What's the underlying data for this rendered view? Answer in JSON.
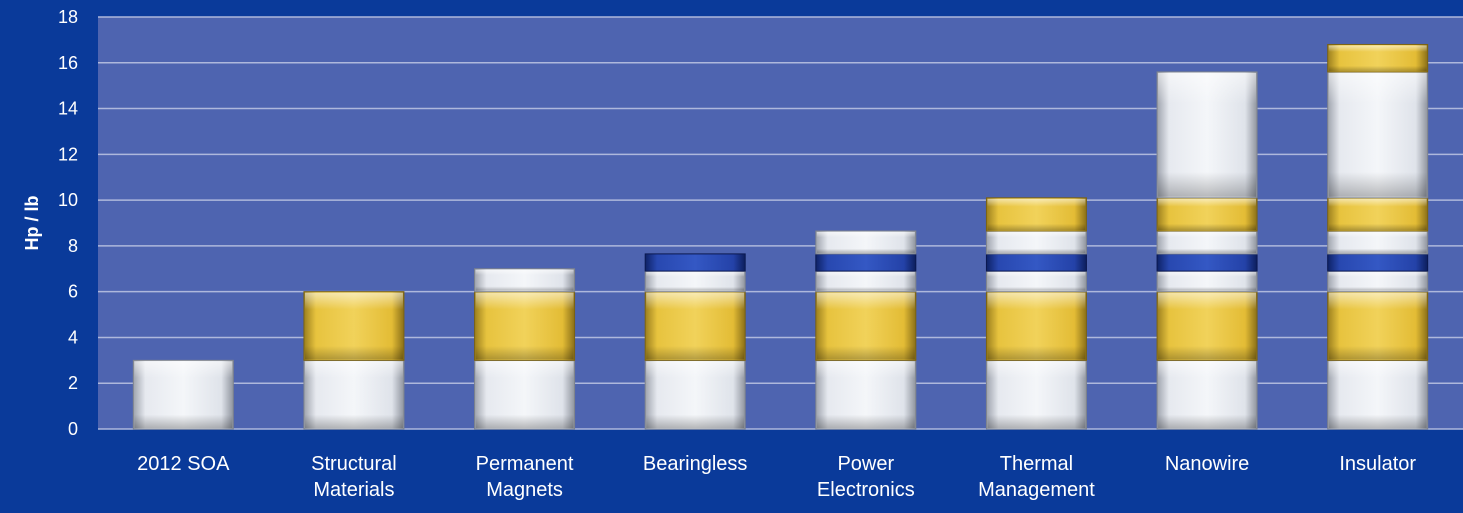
{
  "chart_data": {
    "type": "bar",
    "stacked": true,
    "title": "",
    "xlabel": "",
    "ylabel": "Hp / lb",
    "ylim": [
      0,
      18
    ],
    "yticks": [
      0,
      2,
      4,
      6,
      8,
      10,
      12,
      14,
      16,
      18
    ],
    "grid": true,
    "legend": "none",
    "categories": [
      [
        "2012 SOA"
      ],
      [
        "Structural",
        "Materials"
      ],
      [
        "Permanent",
        "Magnets"
      ],
      [
        "Bearingless"
      ],
      [
        "Power",
        "Electronics"
      ],
      [
        "Thermal",
        "Management"
      ],
      [
        "Nanowire"
      ],
      [
        "Insulator"
      ]
    ],
    "stacks": [
      [
        {
          "value": 3,
          "color": "silver"
        }
      ],
      [
        {
          "value": 3,
          "color": "silver"
        },
        {
          "value": 3,
          "color": "gold"
        }
      ],
      [
        {
          "value": 3,
          "color": "silver"
        },
        {
          "value": 3,
          "color": "gold"
        },
        {
          "value": 1,
          "color": "silver"
        }
      ],
      [
        {
          "value": 3,
          "color": "silver"
        },
        {
          "value": 3,
          "color": "gold"
        },
        {
          "value": 0.9,
          "color": "silver"
        },
        {
          "value": 0.75,
          "color": "blue"
        }
      ],
      [
        {
          "value": 3,
          "color": "silver"
        },
        {
          "value": 3,
          "color": "gold"
        },
        {
          "value": 0.9,
          "color": "silver"
        },
        {
          "value": 0.75,
          "color": "blue"
        },
        {
          "value": 1.0,
          "color": "silver"
        }
      ],
      [
        {
          "value": 3,
          "color": "silver"
        },
        {
          "value": 3,
          "color": "gold"
        },
        {
          "value": 0.9,
          "color": "silver"
        },
        {
          "value": 0.75,
          "color": "blue"
        },
        {
          "value": 1.0,
          "color": "silver"
        },
        {
          "value": 1.45,
          "color": "gold"
        }
      ],
      [
        {
          "value": 3,
          "color": "silver"
        },
        {
          "value": 3,
          "color": "gold"
        },
        {
          "value": 0.9,
          "color": "silver"
        },
        {
          "value": 0.75,
          "color": "blue"
        },
        {
          "value": 1.0,
          "color": "silver"
        },
        {
          "value": 1.45,
          "color": "gold"
        },
        {
          "value": 5.5,
          "color": "silver"
        }
      ],
      [
        {
          "value": 3,
          "color": "silver"
        },
        {
          "value": 3,
          "color": "gold"
        },
        {
          "value": 0.9,
          "color": "silver"
        },
        {
          "value": 0.75,
          "color": "blue"
        },
        {
          "value": 1.0,
          "color": "silver"
        },
        {
          "value": 1.45,
          "color": "gold"
        },
        {
          "value": 5.5,
          "color": "silver"
        },
        {
          "value": 1.2,
          "color": "gold"
        }
      ]
    ],
    "colors": {
      "page_background": "#0a3a9a",
      "plot_background": "#4e64b0",
      "gridline": "#aeb8dc",
      "silver": "#dfe3ea",
      "gold": "#e8c440",
      "blue": "#1e3c9a"
    }
  }
}
